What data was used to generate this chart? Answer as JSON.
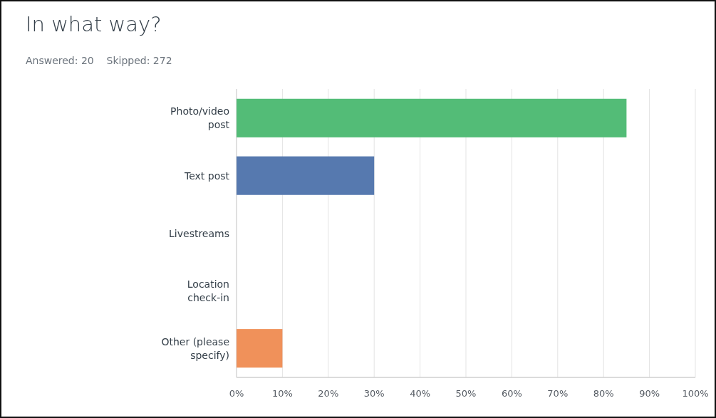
{
  "chart_data": {
    "type": "bar",
    "orientation": "horizontal",
    "title": "In what way?",
    "subtitle": "Answered: 20    Skipped: 272",
    "categories": [
      "Photo/video post",
      "Text post",
      "Livestreams",
      "Location check-in",
      "Other (please specify)"
    ],
    "values": [
      85,
      30,
      0,
      0,
      10
    ],
    "colors": [
      "#53bc77",
      "#5679af",
      "#a6a6a6",
      "#a6a6a6",
      "#f0915a"
    ],
    "xlim": [
      0,
      100
    ],
    "xticks": [
      {
        "value": 0,
        "label": "0%"
      },
      {
        "value": 10,
        "label": "10%"
      },
      {
        "value": 20,
        "label": "20%"
      },
      {
        "value": 30,
        "label": "30%"
      },
      {
        "value": 40,
        "label": "40%"
      },
      {
        "value": 50,
        "label": "50%"
      },
      {
        "value": 60,
        "label": "60%"
      },
      {
        "value": 70,
        "label": "70%"
      },
      {
        "value": 80,
        "label": "80%"
      },
      {
        "value": 90,
        "label": "90%"
      },
      {
        "value": 100,
        "label": "100%"
      }
    ],
    "grid": "x"
  }
}
